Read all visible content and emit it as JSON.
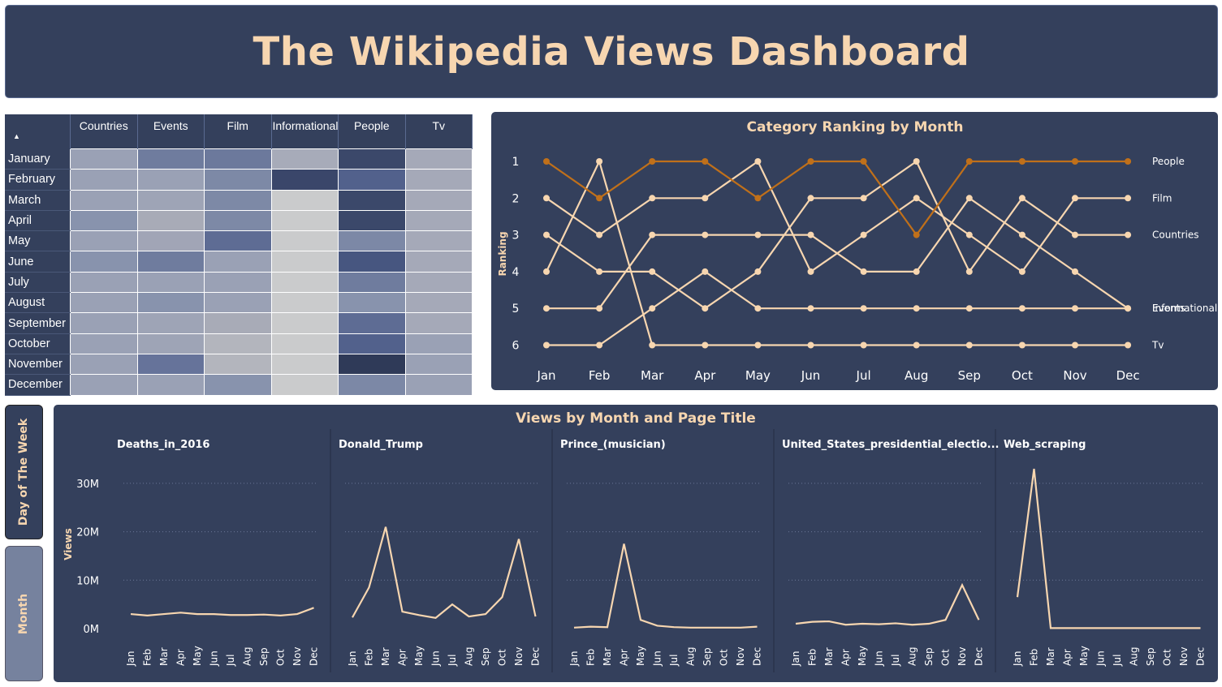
{
  "page_title": "The Wikipedia Views Dashboard",
  "colors": {
    "panel": "#34405c",
    "accent": "#f7d6b0",
    "highlight": "#c0701a"
  },
  "heatmap": {
    "columns": [
      "Countries",
      "Events",
      "Film",
      "Informational",
      "People",
      "Tv"
    ],
    "rows": [
      "January",
      "February",
      "March",
      "April",
      "May",
      "June",
      "July",
      "August",
      "September",
      "October",
      "November",
      "December"
    ],
    "cell_colors": [
      [
        "#9aa1b5",
        "#6f7c9e",
        "#6c799c",
        "#a7abb9",
        "#3b486a",
        "#a5a9b8"
      ],
      [
        "#9aa1b5",
        "#9aa1b5",
        "#7d89a6",
        "#3a466a",
        "#52618c",
        "#a5a9b8"
      ],
      [
        "#9aa1b5",
        "#9ea4b6",
        "#7d89a6",
        "#cacbcc",
        "#3b486a",
        "#a5a9b8"
      ],
      [
        "#8893ad",
        "#a8abb7",
        "#7d89a6",
        "#cacbcc",
        "#3b486a",
        "#a5a9b8"
      ],
      [
        "#9aa1b5",
        "#a1a5b6",
        "#5e6c94",
        "#cacbcc",
        "#7c88a6",
        "#a5a9b8"
      ],
      [
        "#8893ad",
        "#6f7c9e",
        "#9aa1b5",
        "#cacbcc",
        "#475680",
        "#a5a9b8"
      ],
      [
        "#9aa1b5",
        "#9aa1b5",
        "#9aa1b5",
        "#cacbcc",
        "#6f7c9e",
        "#a5a9b8"
      ],
      [
        "#9aa1b5",
        "#8893ad",
        "#9aa1b5",
        "#cacbcc",
        "#8893ad",
        "#a5a9b8"
      ],
      [
        "#9aa1b5",
        "#9ea4b6",
        "#a8abb7",
        "#cacbcc",
        "#5e6c94",
        "#a5a9b8"
      ],
      [
        "#9aa1b5",
        "#9ea4b6",
        "#b3b5bd",
        "#cacbcc",
        "#52618c",
        "#9aa1b5"
      ],
      [
        "#9aa1b5",
        "#66739a",
        "#b3b5bd",
        "#cacbcc",
        "#2f3a58",
        "#9aa1b5"
      ],
      [
        "#9aa1b5",
        "#9aa1b5",
        "#8893ad",
        "#cacbcc",
        "#7c88a6",
        "#9aa1b5"
      ]
    ]
  },
  "ranking_chart": {
    "title": "Category Ranking by Month",
    "ylabel": "Ranking",
    "months": [
      "Jan",
      "Feb",
      "Mar",
      "Apr",
      "May",
      "Jun",
      "Jul",
      "Aug",
      "Sep",
      "Oct",
      "Nov",
      "Dec"
    ],
    "yticks": [
      "1",
      "2",
      "3",
      "4",
      "5",
      "6"
    ],
    "series": [
      {
        "name": "People",
        "highlight": true,
        "values": [
          1,
          2,
          1,
          1,
          2,
          1,
          1,
          3,
          1,
          1,
          1,
          1
        ]
      },
      {
        "name": "Film",
        "values": [
          2,
          3,
          2,
          2,
          1,
          4,
          3,
          2,
          3,
          4,
          2,
          2
        ]
      },
      {
        "name": "Countries",
        "values": [
          3,
          4,
          4,
          5,
          4,
          2,
          2,
          1,
          4,
          2,
          3,
          3
        ]
      },
      {
        "name": "Tv",
        "values": [
          4,
          1,
          6,
          6,
          6,
          6,
          6,
          6,
          6,
          6,
          6,
          6
        ]
      },
      {
        "name": "Events",
        "values": [
          5,
          5,
          3,
          3,
          3,
          3,
          4,
          4,
          2,
          3,
          4,
          5
        ]
      },
      {
        "name": "Informational",
        "values": [
          6,
          6,
          5,
          4,
          5,
          5,
          5,
          5,
          5,
          5,
          5,
          5
        ]
      }
    ]
  },
  "views_chart": {
    "title": "Views by Month and Page Title",
    "ylabel": "Views",
    "yticks": [
      "0M",
      "10M",
      "20M",
      "30M"
    ],
    "months": [
      "Jan",
      "Feb",
      "Mar",
      "Apr",
      "May",
      "Jun",
      "Jul",
      "Aug",
      "Sep",
      "Oct",
      "Nov",
      "Dec"
    ],
    "panels": [
      {
        "name": "Deaths_in_2016",
        "values": [
          3.0,
          2.7,
          3.0,
          3.3,
          3.0,
          3.0,
          2.8,
          2.8,
          2.9,
          2.7,
          3.0,
          4.3
        ]
      },
      {
        "name": "Donald_Trump",
        "values": [
          2.3,
          8.5,
          21.0,
          3.5,
          2.8,
          2.2,
          5.0,
          2.5,
          3.0,
          6.5,
          18.5,
          2.5
        ]
      },
      {
        "name": "Prince_(musician)",
        "values": [
          0.2,
          0.4,
          0.3,
          17.5,
          1.8,
          0.6,
          0.3,
          0.2,
          0.2,
          0.2,
          0.2,
          0.4
        ]
      },
      {
        "name": "United_States_presidential_electio...",
        "values": [
          1.0,
          1.4,
          1.5,
          0.8,
          1.0,
          0.9,
          1.1,
          0.8,
          1.0,
          1.8,
          9.0,
          1.8
        ]
      },
      {
        "name": "Web_scraping",
        "values": [
          6.5,
          33.0,
          0.1,
          0.1,
          0.1,
          0.1,
          0.1,
          0.1,
          0.1,
          0.1,
          0.1,
          0.1
        ]
      }
    ]
  },
  "buttons": {
    "day": "Day of The Week",
    "month": "Month"
  }
}
